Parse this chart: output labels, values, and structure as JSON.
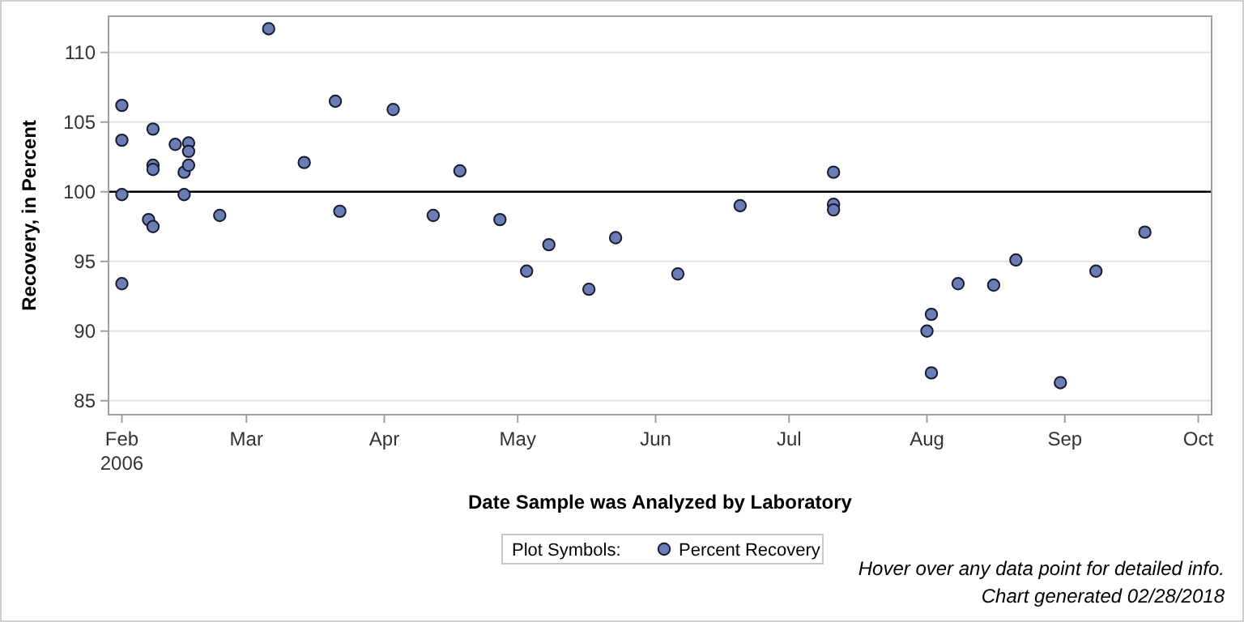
{
  "chart_data": {
    "type": "scatter",
    "xlabel": "Date Sample was Analyzed by Laboratory",
    "ylabel": "Recovery, in Percent",
    "legend_title": "Plot Symbols:",
    "legend": "bottom",
    "grid": "y",
    "marker": "circle",
    "annotations": [
      "Hover over any data point for detailed info.",
      "Chart generated 02/28/2018"
    ],
    "xlim": [
      "2006-01-29",
      "2006-10-04"
    ],
    "xticks": [
      {
        "value": "2006-02-01",
        "label": "Feb\n2006"
      },
      {
        "value": "2006-03-01",
        "label": "Mar"
      },
      {
        "value": "2006-04-01",
        "label": "Apr"
      },
      {
        "value": "2006-05-01",
        "label": "May"
      },
      {
        "value": "2006-06-01",
        "label": "Jun"
      },
      {
        "value": "2006-07-01",
        "label": "Jul"
      },
      {
        "value": "2006-08-01",
        "label": "Aug"
      },
      {
        "value": "2006-09-01",
        "label": "Sep"
      },
      {
        "value": "2006-10-01",
        "label": "Oct"
      }
    ],
    "ylim": [
      84,
      112.6
    ],
    "yticks": [
      85,
      90,
      95,
      100,
      105,
      110
    ],
    "ref_lines": [
      {
        "axis": "y",
        "value": 100,
        "color": "#000000"
      }
    ],
    "series": [
      {
        "name": "Percent Recovery",
        "color": "#6a7db5",
        "x": [
          "2006-02-01",
          "2006-02-01",
          "2006-02-01",
          "2006-02-01",
          "2006-02-07",
          "2006-02-08",
          "2006-02-08",
          "2006-02-08",
          "2006-02-08",
          "2006-02-13",
          "2006-02-15",
          "2006-02-15",
          "2006-02-16",
          "2006-02-16",
          "2006-02-16",
          "2006-02-23",
          "2006-03-06",
          "2006-03-14",
          "2006-03-21",
          "2006-03-22",
          "2006-04-03",
          "2006-04-12",
          "2006-04-18",
          "2006-04-27",
          "2006-05-03",
          "2006-05-08",
          "2006-05-17",
          "2006-05-23",
          "2006-06-06",
          "2006-06-20",
          "2006-07-11",
          "2006-07-11",
          "2006-07-11",
          "2006-08-01",
          "2006-08-02",
          "2006-08-02",
          "2006-08-08",
          "2006-08-16",
          "2006-08-21",
          "2006-08-31",
          "2006-09-08",
          "2006-09-19"
        ],
        "values": [
          106.2,
          103.7,
          99.8,
          93.4,
          98.0,
          97.5,
          104.5,
          101.9,
          101.6,
          103.4,
          101.4,
          99.8,
          103.5,
          102.9,
          101.9,
          98.3,
          111.7,
          102.1,
          106.5,
          98.6,
          105.9,
          98.3,
          101.5,
          98.0,
          94.3,
          96.2,
          93.0,
          96.7,
          94.1,
          99.0,
          101.4,
          99.1,
          98.7,
          90.0,
          91.2,
          87.0,
          93.4,
          93.3,
          95.1,
          86.3,
          94.3,
          97.1
        ]
      }
    ]
  }
}
